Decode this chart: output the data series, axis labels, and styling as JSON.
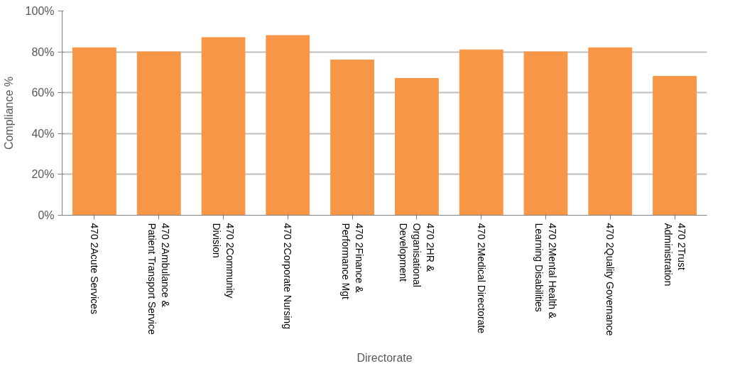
{
  "chart_data": {
    "type": "bar",
    "xlabel": "Directorate",
    "ylabel": "Compliance %",
    "categories": [
      "470 2Acute Services",
      "470 2Ambulance &\nPatient Transport Service",
      "470 2Community\nDivision",
      "470 2Corporate Nursing",
      "470 2Finance &\nPerformance Mgt",
      "470 2HR &\nOrganisational\nDevelopment",
      "470 2Medical Directorate",
      "470 2Mental Health &\nLearning Disabilities",
      "470 2Quality Governance",
      "470 2Trust\nAdministration"
    ],
    "values": [
      82,
      80,
      87,
      88,
      76,
      67,
      81,
      80,
      82,
      68
    ],
    "color": "#f79646",
    "ylim": [
      0,
      100
    ],
    "yticks": [
      {
        "value": 0,
        "label": "0%"
      },
      {
        "value": 20,
        "label": "20%"
      },
      {
        "value": 40,
        "label": "40%"
      },
      {
        "value": 60,
        "label": "60%"
      },
      {
        "value": 80,
        "label": "80%"
      },
      {
        "value": 100,
        "label": "100%"
      }
    ],
    "grid": "y"
  }
}
